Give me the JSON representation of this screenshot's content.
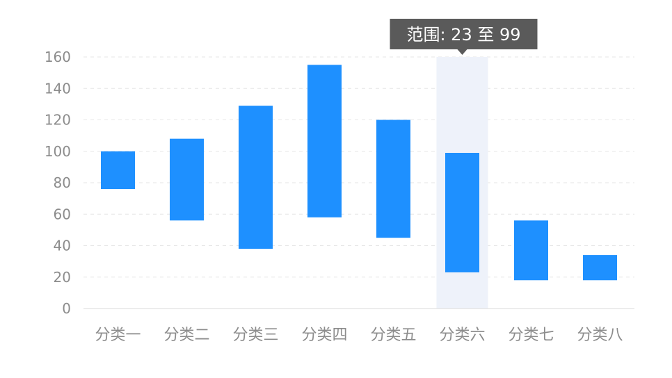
{
  "chart_data": {
    "type": "bar",
    "subtype": "floating-range",
    "categories": [
      "分类一",
      "分类二",
      "分类三",
      "分类四",
      "分类五",
      "分类六",
      "分类七",
      "分类八"
    ],
    "ranges": [
      [
        76,
        100
      ],
      [
        56,
        108
      ],
      [
        38,
        129
      ],
      [
        58,
        155
      ],
      [
        45,
        120
      ],
      [
        23,
        99
      ],
      [
        18,
        56
      ],
      [
        18,
        34
      ]
    ],
    "ylim": [
      0,
      160
    ],
    "yticks": [
      0,
      20,
      40,
      60,
      80,
      100,
      120,
      140,
      160
    ],
    "grid": true,
    "legend": "none",
    "bar_color": "#1e90ff",
    "highlight_color": "#eef2fa",
    "highlight_index": 5,
    "tooltip": {
      "text": "范围: 23 至 99",
      "background": "#5a5a5a"
    }
  }
}
